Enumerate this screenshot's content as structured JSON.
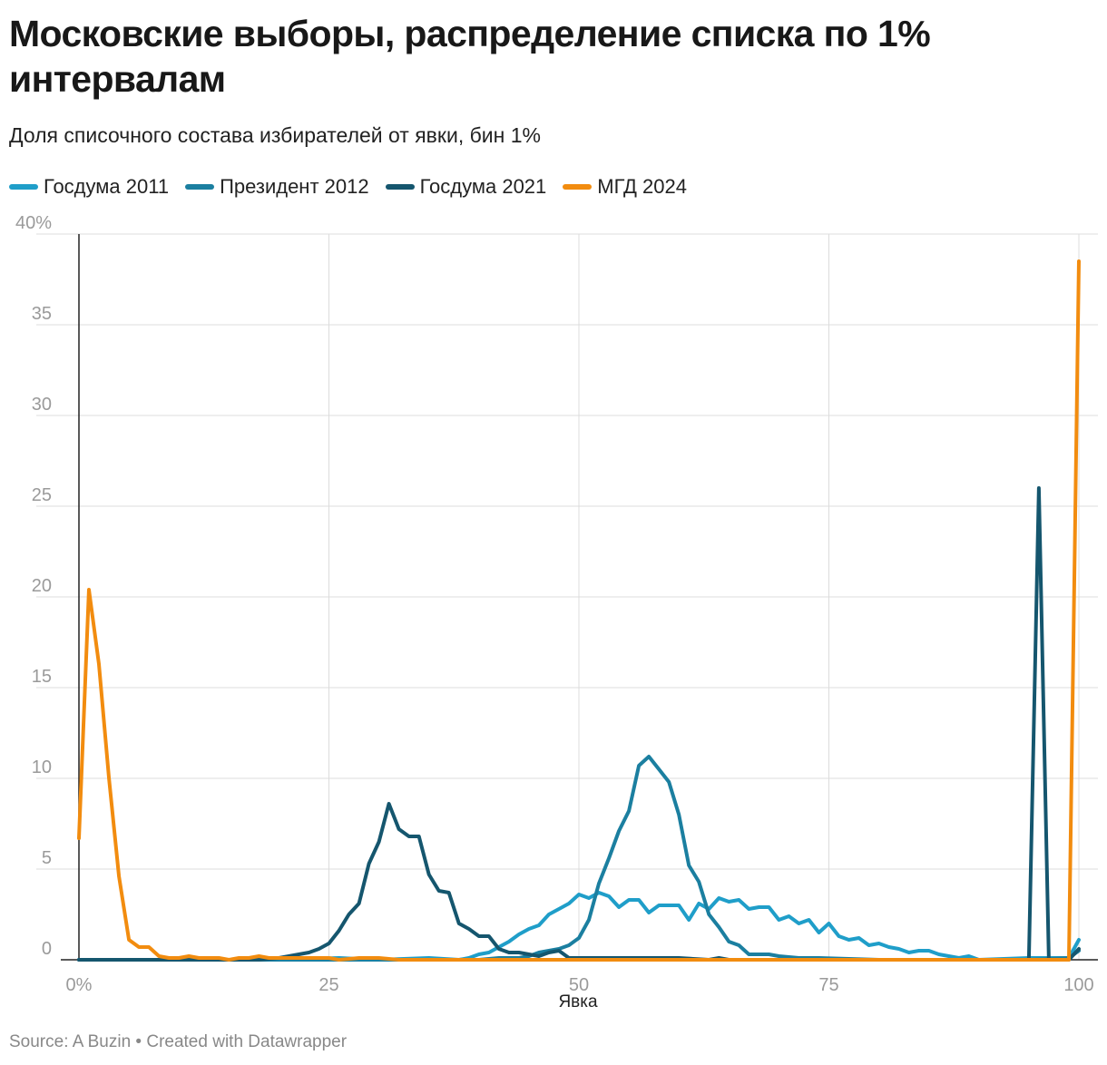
{
  "title": "Московские выборы, распределение списка по 1% интервалам",
  "subtitle": "Доля списочного состава избирателей от явки, бин 1%",
  "footer": "Source: A Buzin • Created with Datawrapper",
  "legend": [
    {
      "name": "Госдума 2011",
      "color": "#1f9ec9"
    },
    {
      "name": "Президент 2012",
      "color": "#1b7fa0"
    },
    {
      "name": "Госдума 2021",
      "color": "#15566e"
    },
    {
      "name": "МГД 2024",
      "color": "#f28c0f"
    }
  ],
  "chart_data": {
    "type": "line",
    "xlabel": "Явка",
    "ylabel": "",
    "xlim": [
      0,
      100
    ],
    "ylim": [
      0,
      40
    ],
    "x_ticks": [
      {
        "value": 0,
        "label": "0%"
      },
      {
        "value": 25,
        "label": "25"
      },
      {
        "value": 50,
        "label": "50"
      },
      {
        "value": 75,
        "label": "75"
      },
      {
        "value": 100,
        "label": "100"
      }
    ],
    "y_ticks": [
      {
        "value": 0,
        "label": "0"
      },
      {
        "value": 5,
        "label": "5"
      },
      {
        "value": 10,
        "label": "10"
      },
      {
        "value": 15,
        "label": "15"
      },
      {
        "value": 20,
        "label": "20"
      },
      {
        "value": 25,
        "label": "25"
      },
      {
        "value": 30,
        "label": "30"
      },
      {
        "value": 35,
        "label": "35"
      },
      {
        "value": 40,
        "label": "40%"
      }
    ],
    "series": [
      {
        "name": "Госдума 2011",
        "color": "#1f9ec9",
        "points": [
          [
            0,
            0
          ],
          [
            20,
            0
          ],
          [
            26,
            0.1
          ],
          [
            30,
            0
          ],
          [
            35,
            0.1
          ],
          [
            38,
            0
          ],
          [
            39,
            0.1
          ],
          [
            40,
            0.3
          ],
          [
            41,
            0.4
          ],
          [
            42,
            0.7
          ],
          [
            43,
            1.0
          ],
          [
            44,
            1.4
          ],
          [
            45,
            1.7
          ],
          [
            46,
            1.9
          ],
          [
            47,
            2.5
          ],
          [
            48,
            2.8
          ],
          [
            49,
            3.1
          ],
          [
            50,
            3.6
          ],
          [
            51,
            3.4
          ],
          [
            52,
            3.7
          ],
          [
            53,
            3.5
          ],
          [
            54,
            2.9
          ],
          [
            55,
            3.3
          ],
          [
            56,
            3.3
          ],
          [
            57,
            2.6
          ],
          [
            58,
            3.0
          ],
          [
            59,
            3.0
          ],
          [
            60,
            3.0
          ],
          [
            61,
            2.2
          ],
          [
            62,
            3.1
          ],
          [
            63,
            2.8
          ],
          [
            64,
            3.4
          ],
          [
            65,
            3.2
          ],
          [
            66,
            3.3
          ],
          [
            67,
            2.8
          ],
          [
            68,
            2.9
          ],
          [
            69,
            2.9
          ],
          [
            70,
            2.2
          ],
          [
            71,
            2.4
          ],
          [
            72,
            2.0
          ],
          [
            73,
            2.2
          ],
          [
            74,
            1.5
          ],
          [
            75,
            2.0
          ],
          [
            76,
            1.3
          ],
          [
            77,
            1.1
          ],
          [
            78,
            1.2
          ],
          [
            79,
            0.8
          ],
          [
            80,
            0.9
          ],
          [
            81,
            0.7
          ],
          [
            82,
            0.6
          ],
          [
            83,
            0.4
          ],
          [
            84,
            0.5
          ],
          [
            85,
            0.5
          ],
          [
            86,
            0.3
          ],
          [
            87,
            0.2
          ],
          [
            88,
            0.1
          ],
          [
            89,
            0.2
          ],
          [
            90,
            0
          ],
          [
            95,
            0.1
          ],
          [
            99,
            0.1
          ],
          [
            100,
            1.1
          ]
        ]
      },
      {
        "name": "Президент 2012",
        "color": "#1b7fa0",
        "points": [
          [
            0,
            0
          ],
          [
            40,
            0
          ],
          [
            42,
            0.1
          ],
          [
            44,
            0.1
          ],
          [
            45,
            0.2
          ],
          [
            46,
            0.4
          ],
          [
            47,
            0.5
          ],
          [
            48,
            0.6
          ],
          [
            49,
            0.8
          ],
          [
            50,
            1.2
          ],
          [
            51,
            2.2
          ],
          [
            52,
            4.2
          ],
          [
            53,
            5.6
          ],
          [
            54,
            7.1
          ],
          [
            55,
            8.2
          ],
          [
            56,
            10.7
          ],
          [
            57,
            11.2
          ],
          [
            58,
            10.5
          ],
          [
            59,
            9.8
          ],
          [
            60,
            8.0
          ],
          [
            61,
            5.2
          ],
          [
            62,
            4.3
          ],
          [
            63,
            2.5
          ],
          [
            64,
            1.8
          ],
          [
            65,
            1.0
          ],
          [
            66,
            0.8
          ],
          [
            67,
            0.3
          ],
          [
            68,
            0.3
          ],
          [
            69,
            0.3
          ],
          [
            70,
            0.2
          ],
          [
            72,
            0.1
          ],
          [
            74,
            0.1
          ],
          [
            80,
            0
          ],
          [
            95,
            0
          ],
          [
            99,
            0.1
          ],
          [
            100,
            0.5
          ]
        ]
      },
      {
        "name": "Госдума 2021",
        "color": "#15566e",
        "points": [
          [
            0,
            0
          ],
          [
            18,
            0
          ],
          [
            20,
            0.1
          ],
          [
            21,
            0.2
          ],
          [
            22,
            0.3
          ],
          [
            23,
            0.4
          ],
          [
            24,
            0.6
          ],
          [
            25,
            0.9
          ],
          [
            26,
            1.6
          ],
          [
            27,
            2.5
          ],
          [
            28,
            3.1
          ],
          [
            29,
            5.3
          ],
          [
            30,
            6.5
          ],
          [
            31,
            8.6
          ],
          [
            32,
            7.2
          ],
          [
            33,
            6.8
          ],
          [
            34,
            6.8
          ],
          [
            35,
            4.7
          ],
          [
            36,
            3.8
          ],
          [
            37,
            3.7
          ],
          [
            38,
            2.0
          ],
          [
            39,
            1.7
          ],
          [
            40,
            1.3
          ],
          [
            41,
            1.3
          ],
          [
            42,
            0.6
          ],
          [
            43,
            0.4
          ],
          [
            44,
            0.4
          ],
          [
            45,
            0.3
          ],
          [
            46,
            0.2
          ],
          [
            47,
            0.4
          ],
          [
            48,
            0.5
          ],
          [
            49,
            0.1
          ],
          [
            50,
            0.1
          ],
          [
            52,
            0.1
          ],
          [
            54,
            0.1
          ],
          [
            56,
            0.1
          ],
          [
            60,
            0.1
          ],
          [
            63,
            0
          ],
          [
            64,
            0.1
          ],
          [
            65,
            0
          ],
          [
            90,
            0
          ],
          [
            95,
            0
          ],
          [
            96,
            26.0
          ],
          [
            97,
            0
          ],
          [
            98,
            0
          ],
          [
            99,
            0
          ],
          [
            100,
            0.6
          ]
        ]
      },
      {
        "name": "МГД 2024",
        "color": "#f28c0f",
        "points": [
          [
            0,
            6.7
          ],
          [
            1,
            20.4
          ],
          [
            2,
            16.3
          ],
          [
            3,
            10.0
          ],
          [
            4,
            4.6
          ],
          [
            5,
            1.1
          ],
          [
            6,
            0.7
          ],
          [
            7,
            0.7
          ],
          [
            8,
            0.2
          ],
          [
            9,
            0.1
          ],
          [
            10,
            0.1
          ],
          [
            11,
            0.2
          ],
          [
            12,
            0.1
          ],
          [
            13,
            0.1
          ],
          [
            14,
            0.1
          ],
          [
            15,
            0
          ],
          [
            16,
            0.1
          ],
          [
            17,
            0.1
          ],
          [
            18,
            0.2
          ],
          [
            19,
            0.1
          ],
          [
            20,
            0.1
          ],
          [
            22,
            0.1
          ],
          [
            24,
            0.1
          ],
          [
            25,
            0.1
          ],
          [
            26,
            0
          ],
          [
            28,
            0.1
          ],
          [
            30,
            0.1
          ],
          [
            32,
            0
          ],
          [
            40,
            0
          ],
          [
            98,
            0
          ],
          [
            99,
            0
          ],
          [
            100,
            38.5
          ]
        ]
      }
    ]
  }
}
